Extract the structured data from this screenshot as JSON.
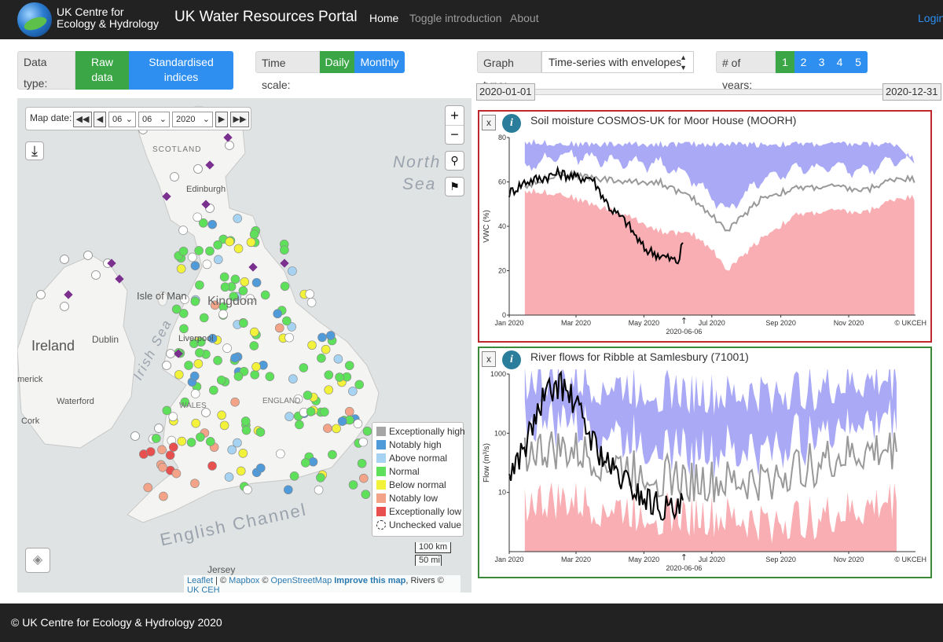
{
  "navbar": {
    "brand_line1": "UK Centre for",
    "brand_line2": "Ecology & Hydrology",
    "title": "UK Water Resources Portal",
    "links": [
      "Home",
      "Toggle introduction",
      "About"
    ],
    "login": "Login"
  },
  "controls": {
    "data_type_label": "Data type:",
    "raw_line1": "Raw",
    "raw_line2": "data",
    "std_line1": "Standardised",
    "std_line2": "indices",
    "time_scale_label": "Time scale:",
    "daily": "Daily",
    "monthly": "Monthly",
    "graph_type_label": "Graph type:",
    "graph_type_value": "Time-series with envelopes",
    "years_label": "# of years:",
    "years": [
      "1",
      "2",
      "3",
      "4",
      "5"
    ],
    "slider_start": "2020-01-01",
    "slider_end": "2020-12-31"
  },
  "map": {
    "date_label": "Map date:",
    "day": "06",
    "month": "06",
    "year": "2020",
    "labels": {
      "north_sea_1": "North",
      "north_sea_2": "Sea",
      "scotland": "SCOTLAND",
      "edinburgh": "Edinburgh",
      "isle_of_man": "Isle of Man",
      "irish_sea": "Irish Sea",
      "ireland": "Ireland",
      "dublin": "Dublin",
      "wales": "WALES",
      "waterford": "Waterford",
      "cork": "Cork",
      "english_channel": "English Channel",
      "jersey": "Jersey",
      "kingdom": "Kingdom",
      "liverpool": "Liverpool",
      "england": "ENGLAND",
      "limerick": "merick"
    },
    "legend": [
      {
        "label": "Exceptionally high",
        "color": "#a6a6a6"
      },
      {
        "label": "Notably high",
        "color": "#4f9ad8"
      },
      {
        "label": "Above normal",
        "color": "#a6d3f2"
      },
      {
        "label": "Normal",
        "color": "#5ee05a"
      },
      {
        "label": "Below normal",
        "color": "#f2f23a"
      },
      {
        "label": "Notably low",
        "color": "#f3a488"
      },
      {
        "label": "Exceptionally low",
        "color": "#e85050"
      },
      {
        "label": "Unchecked value",
        "color": "#ffffff"
      }
    ],
    "scale_km": "100 km",
    "scale_mi": "50 mi",
    "attribution": {
      "leaflet": "Leaflet",
      "sep1": " | © ",
      "mapbox": "Mapbox",
      "sep2": " © ",
      "osm": "OpenStreetMap",
      "improve": "Improve this map",
      "rivers": ", Rivers © ",
      "ukceh": "UK CEH"
    }
  },
  "panels": [
    {
      "close": "x",
      "info": "i",
      "title": "Soil moisture COSMOS-UK for Moor House (MOORH)",
      "ylabel": "VWC (%)",
      "yticks": [
        "80",
        "60",
        "40",
        "20",
        "0"
      ],
      "xticks": [
        "Jan 2020",
        "Mar 2020",
        "May 2020",
        "Jul 2020",
        "Sep 2020",
        "Nov 2020"
      ],
      "marker_date": "2020-06-06",
      "credit": "© UKCEH",
      "border": "#c0272d"
    },
    {
      "close": "x",
      "info": "i",
      "title": "River flows for Ribble at Samlesbury (71001)",
      "ylabel": "Flow (m³/s)",
      "yticks": [
        "1000",
        "100",
        "10"
      ],
      "xticks": [
        "Jan 2020",
        "Mar 2020",
        "May 2020",
        "Jul 2020",
        "Sep 2020",
        "Nov 2020"
      ],
      "marker_date": "2020-06-06",
      "credit": "© UKCEH",
      "border": "#3a8a3a"
    }
  ],
  "chart_data": [
    {
      "type": "area",
      "title": "Soil moisture COSMOS-UK for Moor House (MOORH)",
      "ylabel": "VWC (%)",
      "ylim": [
        0,
        80
      ],
      "x_range": [
        "2020-01-01",
        "2020-12-31"
      ],
      "series": [
        {
          "name": "",
          "color": "#a9a9f5",
          "kind": "upper envelope",
          "x": [
            "2020-01-15",
            "2020-03-01",
            "2020-04-15",
            "2020-06-01",
            "2020-07-15",
            "2020-09-01",
            "2020-10-15",
            "2020-12-15"
          ],
          "values": [
            78,
            77,
            77,
            77,
            77,
            77,
            77,
            77
          ]
        },
        {
          "name": "",
          "color": "#999999",
          "kind": "median",
          "x": [
            "2020-01-15",
            "2020-02-15",
            "2020-03-15",
            "2020-04-15",
            "2020-05-15",
            "2020-06-15",
            "2020-07-01",
            "2020-07-15",
            "2020-08-15",
            "2020-09-15",
            "2020-10-15",
            "2020-11-15",
            "2020-12-15",
            "2020-12-31"
          ],
          "values": [
            58,
            64,
            62,
            60,
            60,
            52,
            45,
            38,
            53,
            57,
            58,
            56,
            62,
            61
          ]
        },
        {
          "name": "",
          "color": "#f8aeb3",
          "kind": "lower envelope",
          "x": [
            "2020-01-15",
            "2020-02-15",
            "2020-03-15",
            "2020-04-15",
            "2020-05-15",
            "2020-06-15",
            "2020-07-01",
            "2020-07-15",
            "2020-08-15",
            "2020-09-15",
            "2020-10-15",
            "2020-11-15",
            "2020-12-15",
            "2020-12-31"
          ],
          "values": [
            56,
            55,
            50,
            45,
            38,
            36,
            30,
            20,
            35,
            45,
            47,
            46,
            53,
            53
          ]
        },
        {
          "name": "",
          "color": "#000000",
          "kind": "2020",
          "x": [
            "2020-01-01",
            "2020-01-15",
            "2020-02-01",
            "2020-02-15",
            "2020-03-01",
            "2020-03-15",
            "2020-04-01",
            "2020-04-15",
            "2020-05-01",
            "2020-05-15",
            "2020-06-01",
            "2020-06-06"
          ],
          "values": [
            55,
            60,
            62,
            64,
            62,
            62,
            48,
            42,
            30,
            27,
            24,
            35
          ]
        }
      ]
    },
    {
      "type": "area",
      "title": "River flows for Ribble at Samlesbury (71001)",
      "ylabel": "Flow (m³/s)",
      "yscale": "log",
      "ylim": [
        1,
        1000
      ],
      "x_range": [
        "2020-01-01",
        "2020-12-31"
      ],
      "series": [
        {
          "name": "",
          "color": "#a9a9f5",
          "kind": "upper envelope",
          "x": [
            "2020-01-15",
            "2020-03-01",
            "2020-04-15",
            "2020-06-01",
            "2020-07-15",
            "2020-09-01",
            "2020-10-15",
            "2020-12-15"
          ],
          "values": [
            800,
            700,
            600,
            500,
            400,
            500,
            600,
            800
          ]
        },
        {
          "name": "",
          "color": "#999999",
          "kind": "median",
          "x": [
            "2020-01-15",
            "2020-02-15",
            "2020-03-15",
            "2020-04-15",
            "2020-05-15",
            "2020-06-15",
            "2020-07-15",
            "2020-08-15",
            "2020-09-15",
            "2020-10-15",
            "2020-11-15",
            "2020-12-15"
          ],
          "values": [
            50,
            50,
            40,
            25,
            20,
            15,
            14,
            15,
            25,
            35,
            45,
            55
          ]
        },
        {
          "name": "",
          "color": "#f8aeb3",
          "kind": "lower envelope",
          "x": [
            "2020-01-15",
            "2020-02-15",
            "2020-03-15",
            "2020-04-15",
            "2020-05-15",
            "2020-06-15",
            "2020-07-15",
            "2020-08-15",
            "2020-09-15",
            "2020-10-15",
            "2020-11-15",
            "2020-12-15"
          ],
          "values": [
            7,
            7,
            6,
            5,
            4.5,
            4,
            3.5,
            3,
            3.5,
            4,
            5,
            8
          ]
        },
        {
          "name": "",
          "color": "#000000",
          "kind": "2020",
          "x": [
            "2020-01-01",
            "2020-01-15",
            "2020-02-01",
            "2020-02-15",
            "2020-03-01",
            "2020-03-15",
            "2020-04-01",
            "2020-04-15",
            "2020-05-01",
            "2020-05-15",
            "2020-06-01",
            "2020-06-06"
          ],
          "values": [
            20,
            60,
            400,
            700,
            300,
            80,
            25,
            15,
            8,
            6,
            4.5,
            7
          ]
        }
      ]
    }
  ]
}
